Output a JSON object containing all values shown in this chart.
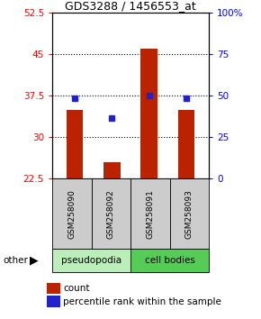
{
  "title": "GDS3288 / 1456553_at",
  "samples": [
    "GSM258090",
    "GSM258092",
    "GSM258091",
    "GSM258093"
  ],
  "groups": [
    "pseudopodia",
    "pseudopodia",
    "cell bodies",
    "cell bodies"
  ],
  "bar_values": [
    35.0,
    25.5,
    46.0,
    35.0
  ],
  "dot_values": [
    37.0,
    33.5,
    37.5,
    37.0
  ],
  "ymin": 22.5,
  "ymax": 52.5,
  "yticks_left": [
    22.5,
    30,
    37.5,
    45,
    52.5
  ],
  "yticks_right": [
    0,
    25,
    50,
    75,
    100
  ],
  "bar_color": "#bb2200",
  "dot_color": "#2222cc",
  "grid_yticks": [
    30,
    37.5,
    45
  ],
  "pseudopodia_color": "#bbeebb",
  "cell_bodies_color": "#55cc55",
  "figsize": [
    2.9,
    3.54
  ],
  "dpi": 100
}
